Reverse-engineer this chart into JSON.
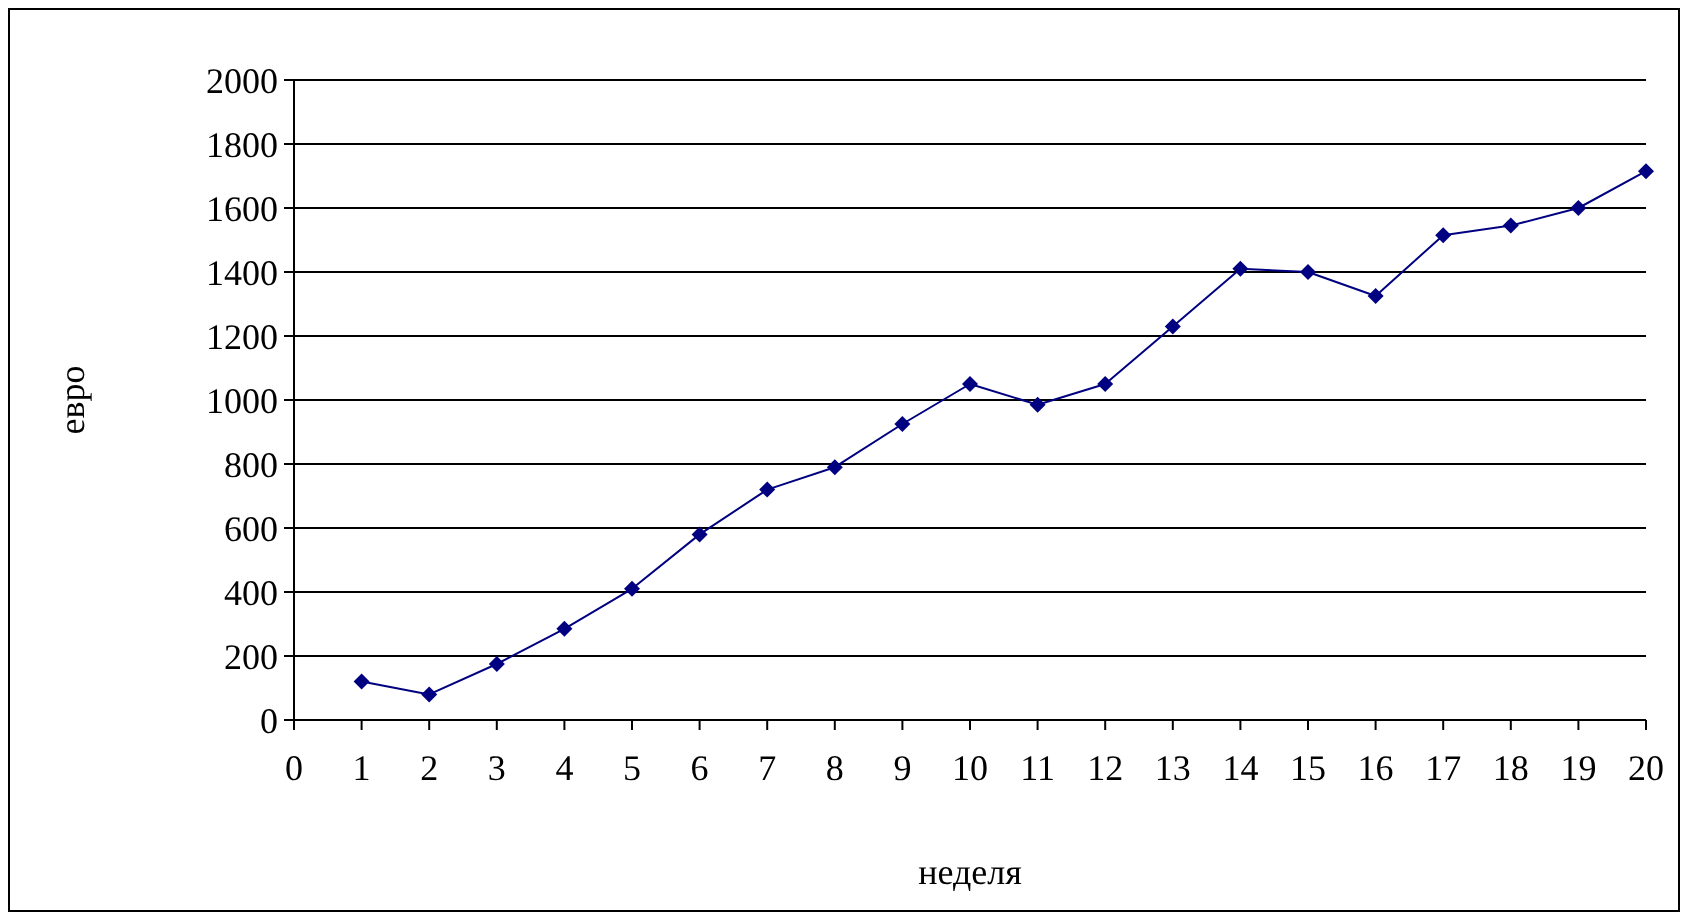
{
  "chart_data": {
    "type": "line",
    "xlabel": "неделя",
    "ylabel": "евро",
    "x": [
      1,
      2,
      3,
      4,
      5,
      6,
      7,
      8,
      9,
      10,
      11,
      12,
      13,
      14,
      15,
      16,
      17,
      18,
      19,
      20
    ],
    "series": [
      {
        "color": "#000080",
        "values": [
          120,
          80,
          175,
          285,
          410,
          580,
          720,
          790,
          925,
          1050,
          985,
          1050,
          1230,
          1410,
          1400,
          1325,
          1515,
          1545,
          1600,
          1715
        ]
      }
    ],
    "xlim": [
      0,
      20
    ],
    "xticks": [
      0,
      1,
      2,
      3,
      4,
      5,
      6,
      7,
      8,
      9,
      10,
      11,
      12,
      13,
      14,
      15,
      16,
      17,
      18,
      19,
      20
    ],
    "ylim": [
      0,
      2000
    ],
    "yticks": [
      0,
      200,
      400,
      600,
      800,
      1000,
      1200,
      1400,
      1600,
      1800,
      2000
    ],
    "grid": "y",
    "marker": "diamond",
    "line_style": "solid"
  }
}
